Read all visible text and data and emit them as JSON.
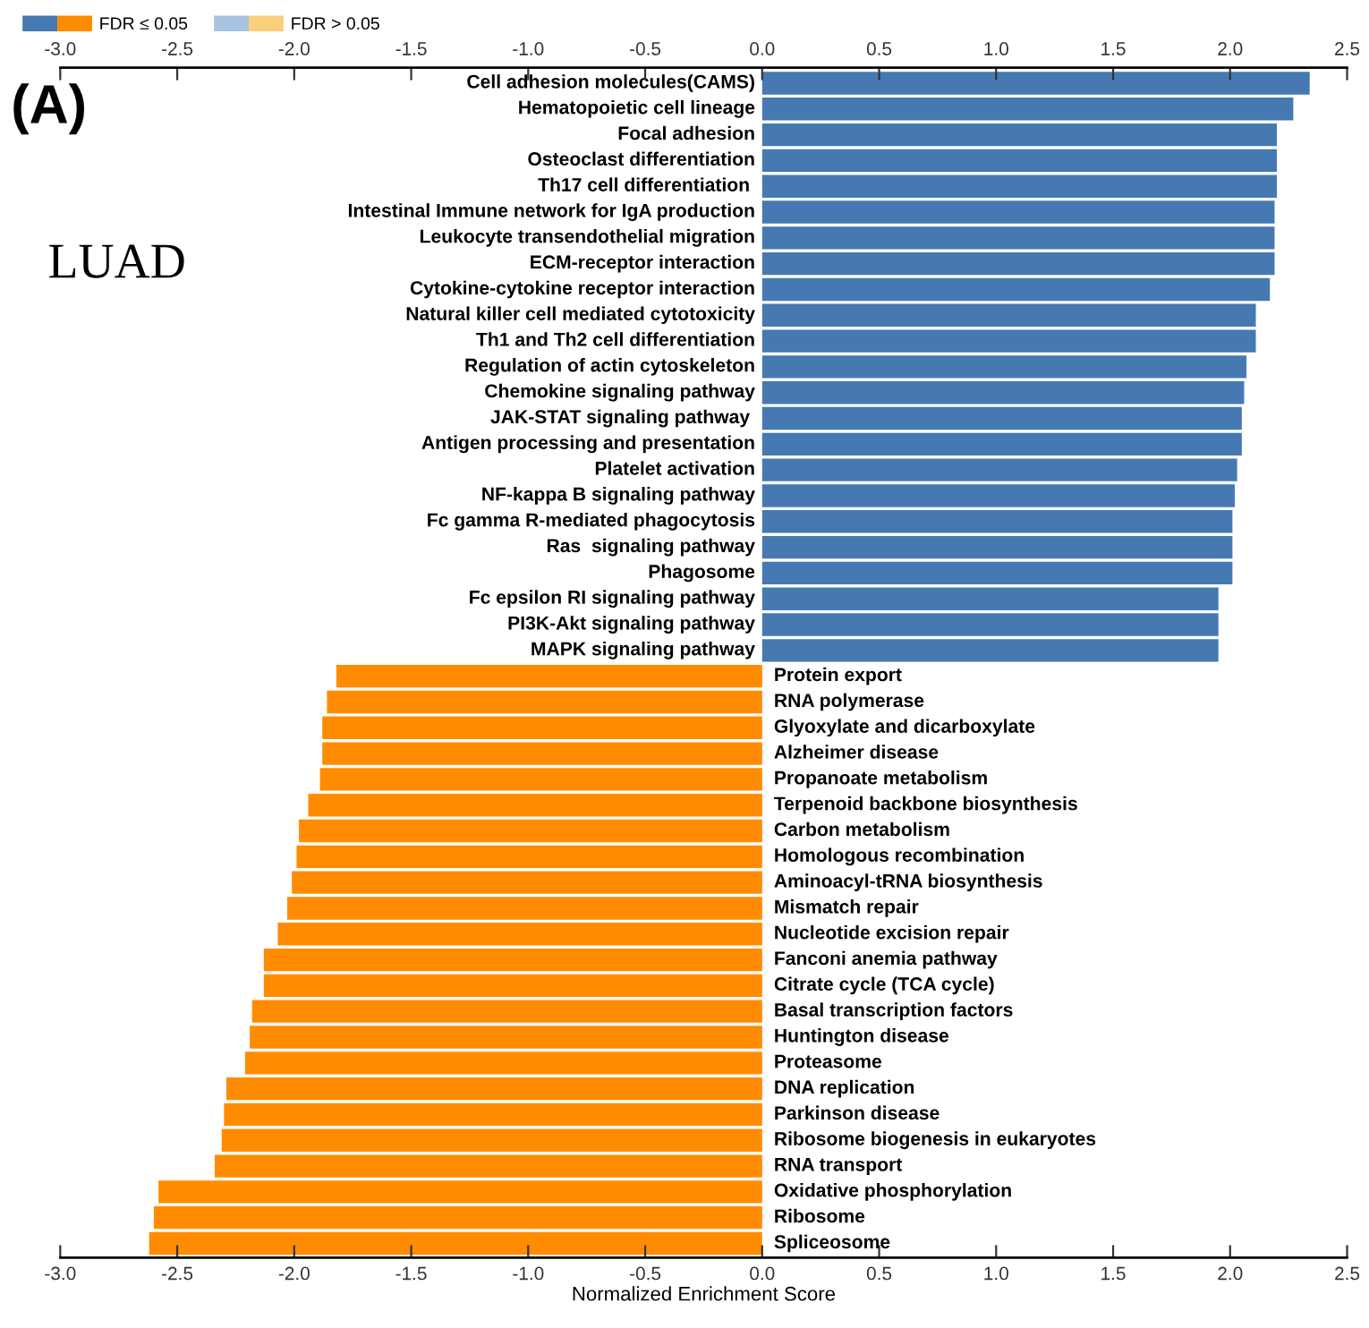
{
  "chart_data": {
    "type": "bar",
    "orientation": "horizontal",
    "xlabel": "Normalized Enrichment Score",
    "categories": [
      "Cell adhesion molecules(CAMS)",
      "Hematopoietic cell lineage",
      "Focal adhesion",
      "Osteoclast differentiation",
      "Th17 cell differentiation ",
      "Intestinal Immune network for IgA production",
      "Leukocyte transendothelial migration",
      "ECM-receptor interaction",
      "Cytokine-cytokine receptor interaction",
      "Natural killer cell mediated cytotoxicity",
      "Th1 and Th2 cell differentiation",
      "Regulation of actin cytoskeleton",
      "Chemokine signaling pathway",
      "JAK-STAT signaling pathway ",
      "Antigen processing and presentation",
      "Platelet activation",
      "NF-kappa B signaling pathway",
      "Fc gamma R-mediated phagocytosis",
      "Ras  signaling pathway",
      "Phagosome",
      "Fc epsilon RI signaling pathway",
      "PI3K-Akt signaling pathway",
      "MAPK signaling pathway",
      "Protein export",
      "RNA polymerase",
      "Glyoxylate and dicarboxylate",
      "Alzheimer disease",
      "Propanoate metabolism",
      "Terpenoid backbone biosynthesis",
      "Carbon metabolism",
      "Homologous recombination",
      "Aminoacyl-tRNA biosynthesis",
      "Mismatch repair",
      "Nucleotide excision repair",
      "Fanconi anemia pathway",
      "Citrate cycle (TCA cycle)",
      "Basal transcription factors",
      "Huntington disease",
      "Proteasome",
      "DNA replication",
      "Parkinson disease",
      "Ribosome biogenesis in eukaryotes",
      "RNA transport",
      "Oxidative phosphorylation",
      "Ribosome",
      "Spliceosome"
    ],
    "series": [
      {
        "name": "FDR ≤ 0.05",
        "values": [
          2.34,
          2.27,
          2.2,
          2.2,
          2.2,
          2.19,
          2.19,
          2.19,
          2.17,
          2.11,
          2.11,
          2.07,
          2.06,
          2.05,
          2.05,
          2.03,
          2.02,
          2.01,
          2.01,
          2.01,
          1.95,
          1.95,
          1.95,
          -1.82,
          -1.86,
          -1.88,
          -1.88,
          -1.89,
          -1.94,
          -1.98,
          -1.99,
          -2.01,
          -2.03,
          -2.07,
          -2.13,
          -2.13,
          -2.18,
          -2.19,
          -2.21,
          -2.29,
          -2.3,
          -2.31,
          -2.34,
          -2.58,
          -2.6,
          -2.62
        ],
        "colors": [
          "#4679b2",
          "#4679b2",
          "#4679b2",
          "#4679b2",
          "#4679b2",
          "#4679b2",
          "#4679b2",
          "#4679b2",
          "#4679b2",
          "#4679b2",
          "#4679b2",
          "#4679b2",
          "#4679b2",
          "#4679b2",
          "#4679b2",
          "#4679b2",
          "#4679b2",
          "#4679b2",
          "#4679b2",
          "#4679b2",
          "#4679b2",
          "#4679b2",
          "#4679b2",
          "#ff8c00",
          "#ff8c00",
          "#ff8c00",
          "#ff8c00",
          "#ff8c00",
          "#ff8c00",
          "#ff8c00",
          "#ff8c00",
          "#ff8c00",
          "#ff8c00",
          "#ff8c00",
          "#ff8c00",
          "#ff8c00",
          "#ff8c00",
          "#ff8c00",
          "#ff8c00",
          "#ff8c00",
          "#ff8c00",
          "#ff8c00",
          "#ff8c00",
          "#ff8c00",
          "#ff8c00",
          "#ff8c00"
        ]
      },
      {
        "name": "FDR > 0.05",
        "values": [
          null,
          null,
          null,
          null,
          null,
          null,
          null,
          null,
          null,
          null,
          null,
          null,
          null,
          null,
          null,
          null,
          null,
          null,
          null,
          null,
          null,
          null,
          null,
          null,
          null,
          null,
          null,
          null,
          null,
          null,
          null,
          null,
          null,
          null,
          null,
          null,
          null,
          null,
          null,
          null,
          null,
          null,
          null,
          null,
          null,
          null
        ],
        "colors": [
          "#a8c3e2",
          "#a8c3e2",
          "#a8c3e2",
          "#a8c3e2",
          "#a8c3e2",
          "#a8c3e2",
          "#a8c3e2",
          "#a8c3e2",
          "#a8c3e2",
          "#a8c3e2",
          "#a8c3e2",
          "#a8c3e2",
          "#a8c3e2",
          "#a8c3e2",
          "#a8c3e2",
          "#a8c3e2",
          "#a8c3e2",
          "#a8c3e2",
          "#a8c3e2",
          "#a8c3e2",
          "#a8c3e2",
          "#a8c3e2",
          "#a8c3e2",
          "#fbce7b",
          "#fbce7b",
          "#fbce7b",
          "#fbce7b",
          "#fbce7b",
          "#fbce7b",
          "#fbce7b",
          "#fbce7b",
          "#fbce7b",
          "#fbce7b",
          "#fbce7b",
          "#fbce7b",
          "#fbce7b",
          "#fbce7b",
          "#fbce7b",
          "#fbce7b",
          "#fbce7b",
          "#fbce7b",
          "#fbce7b",
          "#fbce7b",
          "#fbce7b",
          "#fbce7b",
          "#fbce7b"
        ]
      }
    ],
    "xlim": [
      -3.0,
      2.5
    ],
    "xticks": [
      {
        "value": -3,
        "label": "-3.0"
      },
      -2.5,
      {
        "value": -2,
        "label": "-2.0"
      },
      -1.5,
      {
        "value": -1,
        "label": "-1.0"
      },
      -0.5,
      {
        "value": 0,
        "label": "0.0"
      },
      0.5,
      {
        "value": 1,
        "label": "1.0"
      },
      1.5,
      {
        "value": 2,
        "label": "2.0"
      },
      2.5
    ],
    "x2lim": [
      -3.0,
      2.5
    ],
    "x2ticks": [
      {
        "value": -3,
        "label": "-3.0"
      },
      -2.5,
      {
        "value": -2,
        "label": "-2.0"
      },
      -1.5,
      {
        "value": -1,
        "label": "-1.0"
      },
      -0.5,
      {
        "value": 0,
        "label": "0.0"
      },
      0.5,
      {
        "value": 1,
        "label": "1.0"
      },
      1.5,
      {
        "value": 2,
        "label": "2.0"
      },
      2.5
    ],
    "legend": "top left",
    "grid": false,
    "annotations": [
      "(A)",
      "LUAD"
    ]
  }
}
